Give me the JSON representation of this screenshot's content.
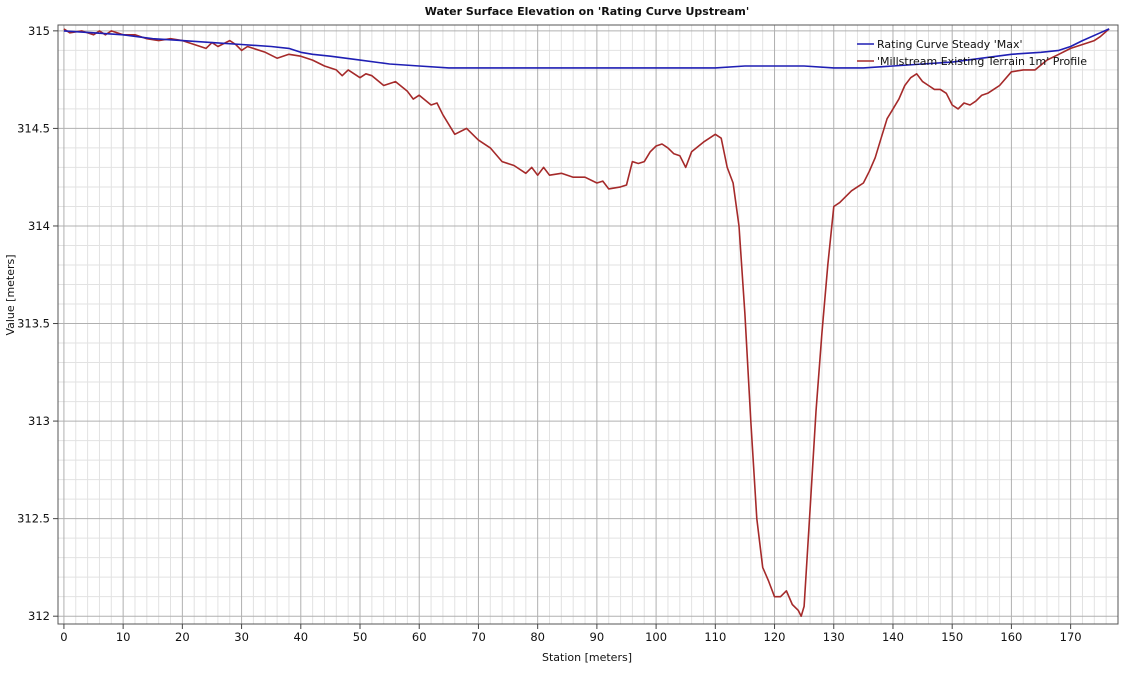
{
  "chart_data": {
    "type": "line",
    "title": "Water Surface Elevation on 'Rating Curve Upstream'",
    "xlabel": "Station [meters]",
    "ylabel": "Value [meters]",
    "xlim": [
      -1,
      178
    ],
    "ylim": [
      311.96,
      315.03
    ],
    "xticks": [
      0,
      10,
      20,
      30,
      40,
      50,
      60,
      70,
      80,
      90,
      100,
      110,
      120,
      130,
      140,
      150,
      160,
      170
    ],
    "yticks": [
      312,
      312.5,
      313,
      313.5,
      314,
      314.5,
      315
    ],
    "ytick_labels": [
      "312",
      "312.5",
      "313",
      "313.5",
      "314",
      "314.5",
      "315"
    ],
    "grid": true,
    "minor_grid": true,
    "legend_position": "top-right",
    "series": [
      {
        "name": "Rating Curve Steady 'Max'",
        "color": "#1f1fb4",
        "x": [
          0,
          5,
          10,
          15,
          20,
          25,
          30,
          35,
          38,
          40,
          42,
          45,
          50,
          55,
          60,
          65,
          70,
          80,
          90,
          100,
          110,
          115,
          120,
          125,
          130,
          135,
          140,
          145,
          150,
          155,
          160,
          165,
          168,
          170,
          172,
          175,
          176.5
        ],
        "y": [
          315.0,
          314.99,
          314.98,
          314.96,
          314.95,
          314.94,
          314.93,
          314.92,
          314.91,
          314.89,
          314.88,
          314.87,
          314.85,
          314.83,
          314.82,
          314.81,
          314.81,
          314.81,
          314.81,
          314.81,
          314.81,
          314.82,
          314.82,
          314.82,
          314.81,
          314.81,
          314.82,
          314.83,
          314.84,
          314.86,
          314.88,
          314.89,
          314.9,
          314.92,
          314.95,
          314.99,
          315.01
        ]
      },
      {
        "name": "'Millstream Existing Terrain 1m' Profile",
        "color": "#a52a2a",
        "x": [
          0,
          1,
          3,
          5,
          6,
          7,
          8,
          10,
          12,
          14,
          16,
          18,
          20,
          22,
          24,
          25,
          26,
          28,
          29,
          30,
          31,
          32,
          34,
          36,
          38,
          40,
          42,
          44,
          46,
          47,
          48,
          50,
          51,
          52,
          54,
          56,
          58,
          59,
          60,
          62,
          63,
          64,
          66,
          68,
          70,
          72,
          74,
          76,
          78,
          79,
          80,
          81,
          82,
          84,
          86,
          88,
          90,
          91,
          92,
          94,
          95,
          96,
          97,
          98,
          99,
          100,
          101,
          102,
          103,
          104,
          105,
          106,
          108,
          109,
          110,
          111,
          112,
          113,
          114,
          115,
          116,
          117,
          118,
          119,
          120,
          121,
          122,
          123,
          124,
          124.5,
          125,
          125.5,
          126,
          127,
          128,
          129,
          130,
          131,
          132,
          133,
          134,
          135,
          136,
          137,
          138,
          139,
          140,
          141,
          142,
          143,
          144,
          145,
          146,
          147,
          148,
          149,
          150,
          151,
          152,
          153,
          154,
          155,
          156,
          157,
          158,
          160,
          162,
          164,
          166,
          168,
          170,
          172,
          174,
          175,
          176.5
        ],
        "y": [
          315.01,
          314.99,
          315.0,
          314.98,
          315.0,
          314.98,
          315.0,
          314.98,
          314.98,
          314.96,
          314.95,
          314.96,
          314.95,
          314.93,
          314.91,
          314.94,
          314.92,
          314.95,
          314.93,
          314.9,
          314.92,
          314.91,
          314.89,
          314.86,
          314.88,
          314.87,
          314.85,
          314.82,
          314.8,
          314.77,
          314.8,
          314.76,
          314.78,
          314.77,
          314.72,
          314.74,
          314.69,
          314.65,
          314.67,
          314.62,
          314.63,
          314.57,
          314.47,
          314.5,
          314.44,
          314.4,
          314.33,
          314.31,
          314.27,
          314.3,
          314.26,
          314.3,
          314.26,
          314.27,
          314.25,
          314.25,
          314.22,
          314.23,
          314.19,
          314.2,
          314.21,
          314.33,
          314.32,
          314.33,
          314.38,
          314.41,
          314.42,
          314.4,
          314.37,
          314.36,
          314.3,
          314.38,
          314.43,
          314.45,
          314.47,
          314.45,
          314.3,
          314.22,
          314.0,
          313.55,
          313.0,
          312.5,
          312.25,
          312.18,
          312.1,
          312.1,
          312.13,
          312.06,
          312.03,
          312.0,
          312.05,
          312.3,
          312.55,
          313.05,
          313.45,
          313.8,
          314.1,
          314.12,
          314.15,
          314.18,
          314.2,
          314.22,
          314.28,
          314.35,
          314.45,
          314.55,
          314.6,
          314.65,
          314.72,
          314.76,
          314.78,
          314.74,
          314.72,
          314.7,
          314.7,
          314.68,
          314.62,
          314.6,
          314.63,
          314.62,
          314.64,
          314.67,
          314.68,
          314.7,
          314.72,
          314.79,
          314.8,
          314.8,
          314.85,
          314.88,
          314.91,
          314.93,
          314.95,
          314.97,
          315.01
        ]
      }
    ]
  }
}
